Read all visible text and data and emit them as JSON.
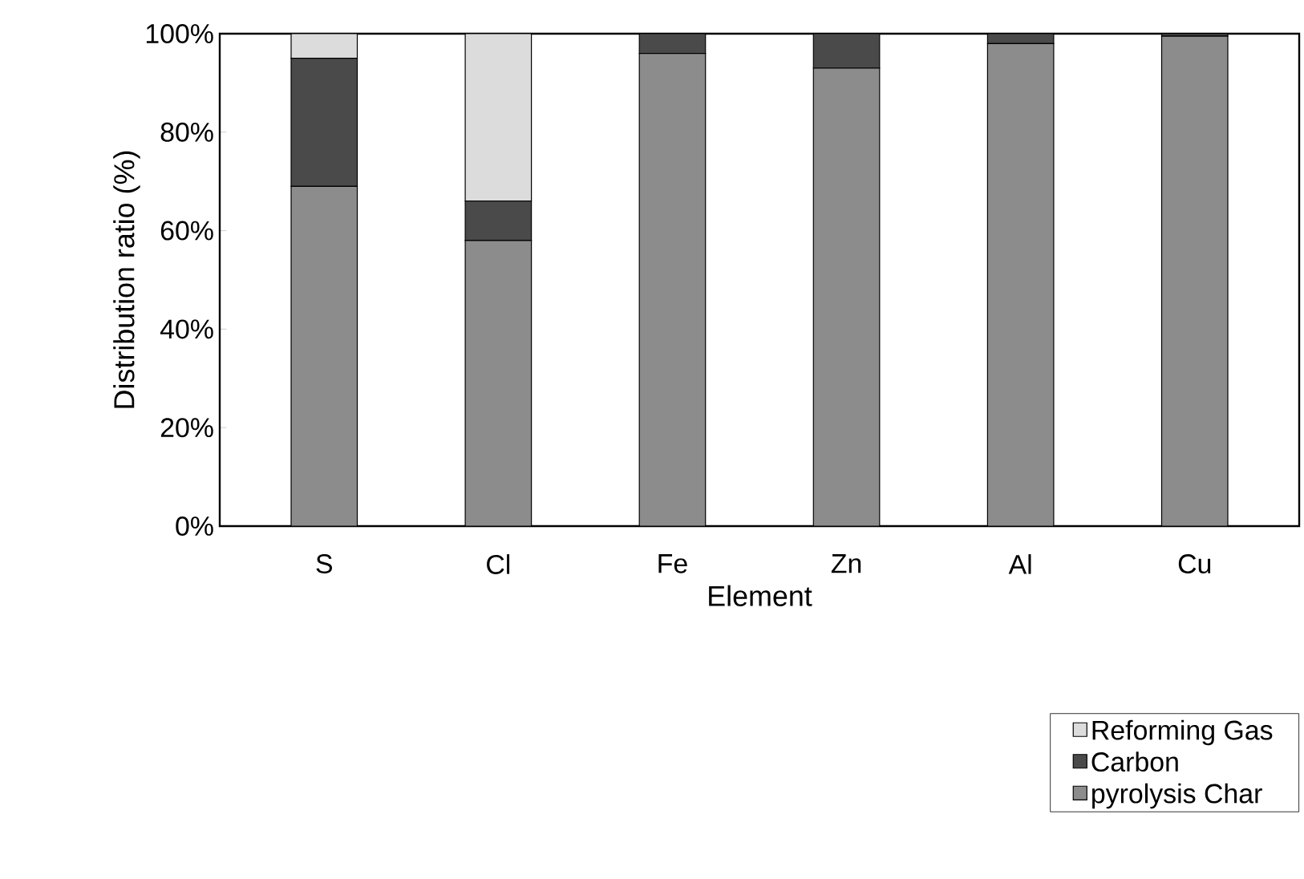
{
  "chart_data": {
    "type": "bar",
    "stacked": true,
    "xlabel": "Element",
    "ylabel": "Distribution ratio (%)",
    "categories": [
      "S",
      "Cl",
      "Fe",
      "Zn",
      "Al",
      "Cu"
    ],
    "series": [
      {
        "name": "pyrolysis Char",
        "color": "#8c8c8c",
        "values": [
          69,
          58,
          96,
          93,
          98,
          99.5
        ]
      },
      {
        "name": "Carbon",
        "color": "#4a4a4a",
        "values": [
          26,
          8,
          4,
          7,
          2,
          0.5
        ]
      },
      {
        "name": "Reforming Gas",
        "color": "#dcdcdc",
        "values": [
          5,
          34,
          0,
          0,
          0,
          0
        ]
      }
    ],
    "ylim": [
      0,
      100
    ],
    "yticks": [
      {
        "value": 0,
        "label": "0%"
      },
      {
        "value": 20,
        "label": "20%"
      },
      {
        "value": 40,
        "label": "40%"
      },
      {
        "value": 60,
        "label": "60%"
      },
      {
        "value": 80,
        "label": "80%"
      },
      {
        "value": 100,
        "label": "100%"
      }
    ],
    "grid": false,
    "legend": "bottom right"
  }
}
